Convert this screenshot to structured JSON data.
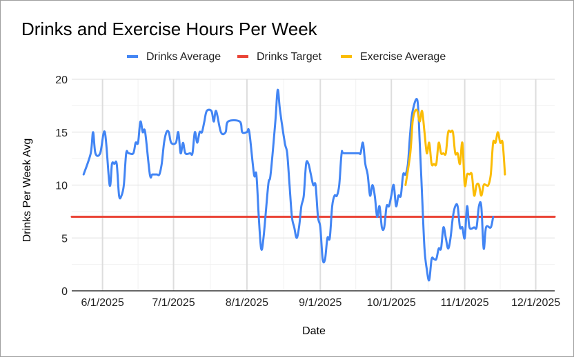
{
  "chart_data": {
    "type": "line",
    "title": "Drinks and Exercise Hours Per Week",
    "xlabel": "Date",
    "ylabel": "Drinks Per Week Avg",
    "ylim": [
      0,
      20
    ],
    "y_ticks": [
      0,
      5,
      10,
      15,
      20
    ],
    "x_range_days": [
      -6,
      198
    ],
    "x_day0": "2025-05-25",
    "x_ticks": [
      {
        "label": "6/1/2025",
        "day": 7
      },
      {
        "label": "7/1/2025",
        "day": 37
      },
      {
        "label": "8/1/2025",
        "day": 68
      },
      {
        "label": "9/1/2025",
        "day": 99
      },
      {
        "label": "10/1/2025",
        "day": 129
      },
      {
        "label": "11/1/2025",
        "day": 160
      },
      {
        "label": "12/1/2025",
        "day": 190
      }
    ],
    "legend_position": "top",
    "grid": true,
    "series": [
      {
        "name": "Drinks Average",
        "color": "#4285f4",
        "points": [
          [
            -1,
            11
          ],
          [
            2,
            13
          ],
          [
            3,
            15
          ],
          [
            4,
            13
          ],
          [
            6,
            13
          ],
          [
            8,
            15
          ],
          [
            10,
            10
          ],
          [
            11,
            12
          ],
          [
            12,
            12
          ],
          [
            13,
            12
          ],
          [
            14,
            9
          ],
          [
            15,
            9
          ],
          [
            16,
            10
          ],
          [
            17,
            13
          ],
          [
            18,
            13
          ],
          [
            20,
            13
          ],
          [
            21,
            14
          ],
          [
            22,
            14
          ],
          [
            23,
            16
          ],
          [
            24,
            15
          ],
          [
            25,
            15
          ],
          [
            27,
            11
          ],
          [
            28,
            11
          ],
          [
            30,
            11
          ],
          [
            31,
            11
          ],
          [
            32,
            12
          ],
          [
            33,
            14
          ],
          [
            34,
            15
          ],
          [
            35,
            15
          ],
          [
            36,
            14
          ],
          [
            38,
            14
          ],
          [
            39,
            15
          ],
          [
            40,
            13
          ],
          [
            41,
            14
          ],
          [
            42,
            13
          ],
          [
            44,
            13
          ],
          [
            45,
            13
          ],
          [
            46,
            15
          ],
          [
            47,
            14
          ],
          [
            48,
            15
          ],
          [
            49,
            15
          ],
          [
            50,
            16
          ],
          [
            51,
            17
          ],
          [
            53,
            17
          ],
          [
            54,
            16
          ],
          [
            55,
            17
          ],
          [
            57,
            15
          ],
          [
            59,
            15
          ],
          [
            60,
            16
          ],
          [
            65,
            16
          ],
          [
            66,
            15
          ],
          [
            68,
            15
          ],
          [
            69,
            15
          ],
          [
            71,
            11
          ],
          [
            72,
            11
          ],
          [
            73,
            7
          ],
          [
            74,
            4
          ],
          [
            75,
            5
          ],
          [
            77,
            10
          ],
          [
            78,
            11
          ],
          [
            80,
            16
          ],
          [
            81,
            19
          ],
          [
            82,
            17
          ],
          [
            84,
            14
          ],
          [
            85,
            13
          ],
          [
            86,
            10
          ],
          [
            87,
            7
          ],
          [
            88,
            6
          ],
          [
            89,
            5
          ],
          [
            90,
            6
          ],
          [
            91,
            8
          ],
          [
            92,
            9
          ],
          [
            93,
            12
          ],
          [
            94,
            12
          ],
          [
            95,
            11
          ],
          [
            96,
            10
          ],
          [
            97,
            10
          ],
          [
            98,
            7
          ],
          [
            99,
            6
          ],
          [
            100,
            3
          ],
          [
            101,
            3
          ],
          [
            102,
            5
          ],
          [
            103,
            5
          ],
          [
            104,
            8
          ],
          [
            105,
            9
          ],
          [
            106,
            9
          ],
          [
            107,
            10
          ],
          [
            108,
            13
          ],
          [
            109,
            13
          ],
          [
            115,
            13
          ],
          [
            116,
            13
          ],
          [
            117,
            14
          ],
          [
            118,
            12
          ],
          [
            119,
            11
          ],
          [
            120,
            9
          ],
          [
            121,
            10
          ],
          [
            122,
            9
          ],
          [
            123,
            7
          ],
          [
            124,
            8
          ],
          [
            125,
            6
          ],
          [
            126,
            6
          ],
          [
            127,
            8
          ],
          [
            128,
            8
          ],
          [
            129,
            9
          ],
          [
            130,
            10
          ],
          [
            131,
            8
          ],
          [
            132,
            9
          ],
          [
            133,
            9
          ],
          [
            134,
            11
          ],
          [
            135,
            11
          ],
          [
            136,
            12
          ],
          [
            137,
            15
          ],
          [
            138,
            17
          ],
          [
            140,
            18
          ],
          [
            141,
            14
          ],
          [
            142,
            9
          ],
          [
            143,
            4
          ],
          [
            144,
            2
          ],
          [
            145,
            1
          ],
          [
            146,
            3
          ],
          [
            147,
            3
          ],
          [
            148,
            3
          ],
          [
            149,
            4
          ],
          [
            150,
            4
          ],
          [
            151,
            6
          ],
          [
            152,
            5
          ],
          [
            153,
            4
          ],
          [
            154,
            5
          ],
          [
            155,
            7
          ],
          [
            156,
            8
          ],
          [
            157,
            8
          ],
          [
            158,
            6
          ],
          [
            159,
            6
          ],
          [
            160,
            5
          ],
          [
            161,
            8
          ],
          [
            162,
            6
          ],
          [
            164,
            6
          ],
          [
            165,
            6
          ],
          [
            166,
            8
          ],
          [
            167,
            8
          ],
          [
            168,
            4
          ],
          [
            169,
            6
          ],
          [
            171,
            6
          ],
          [
            172,
            7
          ]
        ]
      },
      {
        "name": "Drinks Target",
        "color": "#ea4335",
        "points": [
          [
            -6,
            7
          ],
          [
            198,
            7
          ]
        ]
      },
      {
        "name": "Exercise Average",
        "color": "#fbbc04",
        "points": [
          [
            135,
            10
          ],
          [
            137,
            13
          ],
          [
            138,
            16
          ],
          [
            139,
            17
          ],
          [
            140,
            17
          ],
          [
            141,
            16
          ],
          [
            142,
            17
          ],
          [
            143,
            15
          ],
          [
            144,
            13
          ],
          [
            145,
            14
          ],
          [
            146,
            12
          ],
          [
            147,
            12
          ],
          [
            148,
            12
          ],
          [
            149,
            14
          ],
          [
            150,
            13
          ],
          [
            151,
            13
          ],
          [
            152,
            13
          ],
          [
            153,
            15
          ],
          [
            154,
            15
          ],
          [
            155,
            15
          ],
          [
            156,
            13
          ],
          [
            157,
            13
          ],
          [
            158,
            12
          ],
          [
            159,
            14
          ],
          [
            160,
            10
          ],
          [
            161,
            11
          ],
          [
            162,
            11
          ],
          [
            163,
            11
          ],
          [
            164,
            9
          ],
          [
            165,
            10
          ],
          [
            166,
            10
          ],
          [
            167,
            9
          ],
          [
            168,
            10
          ],
          [
            169,
            10
          ],
          [
            170,
            10
          ],
          [
            171,
            11
          ],
          [
            172,
            14
          ],
          [
            173,
            14
          ],
          [
            174,
            15
          ],
          [
            175,
            14
          ],
          [
            176,
            14
          ],
          [
            177,
            11
          ]
        ]
      }
    ]
  }
}
